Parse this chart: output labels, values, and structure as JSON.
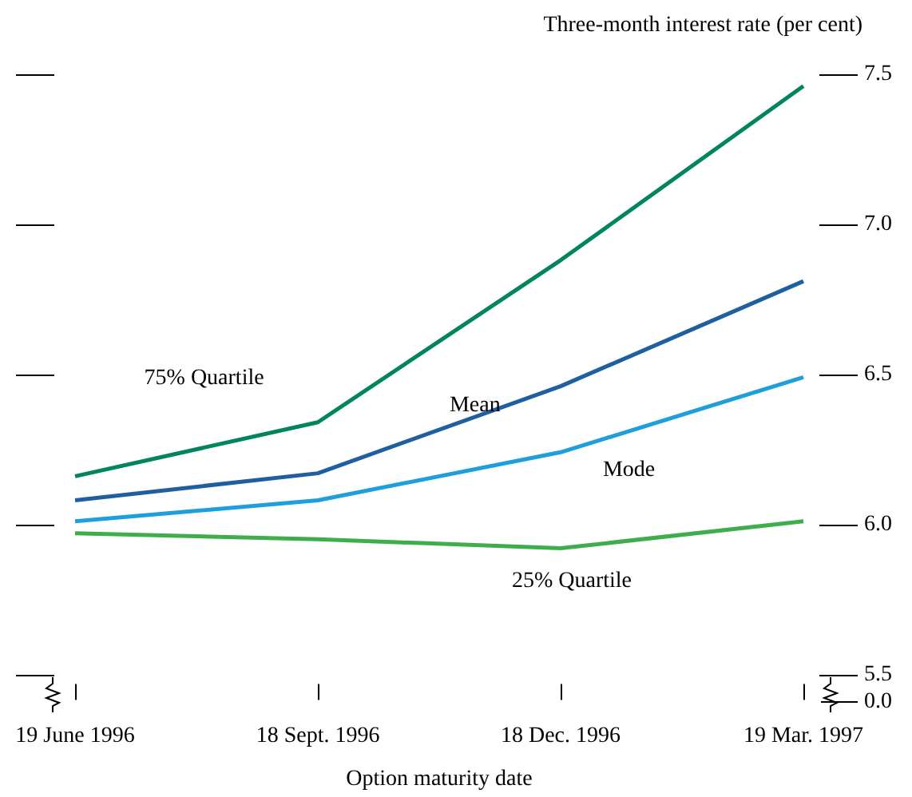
{
  "chart_data": {
    "type": "line",
    "xlabel": "Option maturity date",
    "ylabel": "Three-month interest rate (per cent)",
    "categories": [
      "19 June 1996",
      "18 Sept. 1996",
      "18 Dec. 1996",
      "19 Mar. 1997"
    ],
    "series": [
      {
        "name": "75% Quartile",
        "color": "#00855f",
        "values": [
          6.16,
          6.34,
          6.88,
          7.46
        ]
      },
      {
        "name": "Mean",
        "color": "#1f5f9f",
        "values": [
          6.08,
          6.17,
          6.46,
          6.81
        ]
      },
      {
        "name": "Mode",
        "color": "#1e9fdb",
        "values": [
          6.01,
          6.08,
          6.24,
          6.49
        ]
      },
      {
        "name": "25% Quartile",
        "color": "#3dae4a",
        "values": [
          5.97,
          5.95,
          5.92,
          6.01
        ]
      }
    ],
    "ylim": [
      5.5,
      7.5
    ],
    "yticks": [
      5.5,
      {
        "value": 6,
        "label": "6.0"
      },
      6.5,
      {
        "value": 7,
        "label": "7.0"
      },
      7.5
    ],
    "annotations": [
      "0.0"
    ],
    "grid": false,
    "legend": false,
    "marker": "none",
    "line_style": "solid"
  }
}
